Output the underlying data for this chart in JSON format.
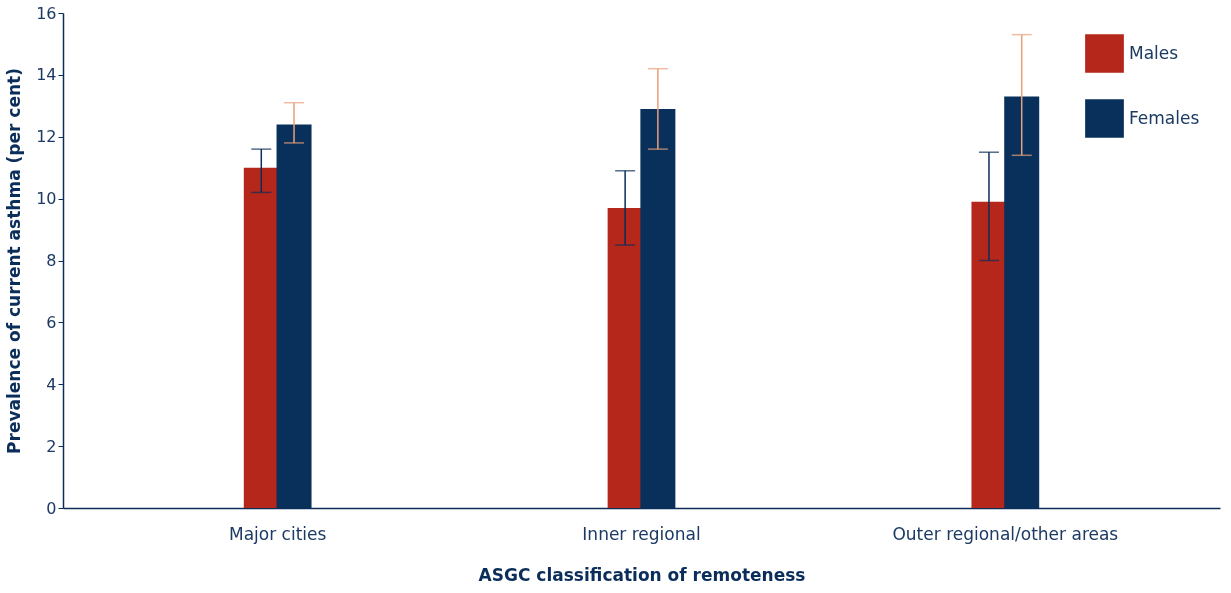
{
  "chart_data": {
    "type": "bar",
    "xlabel": "ASGC classification of remoteness",
    "ylabel": "Prevalence of current asthma (per cent)",
    "categories": [
      "Major cities",
      "Inner regional",
      "Outer regional/other areas"
    ],
    "series": [
      {
        "name": "Males",
        "color": "#b5261b",
        "values": [
          11.0,
          9.7,
          9.9
        ],
        "errors": [
          [
            10.2,
            11.6
          ],
          [
            8.5,
            10.9
          ],
          [
            8.0,
            11.5
          ]
        ]
      },
      {
        "name": "Females",
        "color": "#08305a",
        "values": [
          12.4,
          12.9,
          13.3
        ],
        "errors": [
          [
            11.8,
            13.1
          ],
          [
            11.6,
            14.2
          ],
          [
            11.4,
            15.3
          ]
        ]
      }
    ],
    "ylim": [
      0,
      16
    ],
    "yticks": [
      0,
      2,
      4,
      6,
      8,
      10,
      12,
      14,
      16
    ],
    "grid": false,
    "legend": "top right"
  }
}
